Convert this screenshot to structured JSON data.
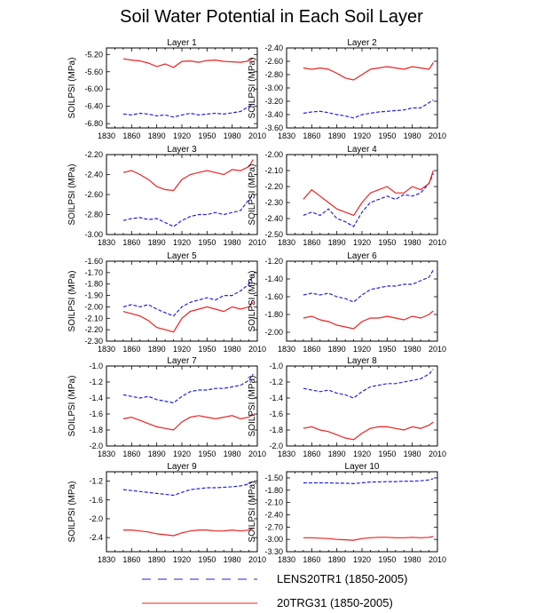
{
  "title": "Soil Water Potential in Each Soil Layer",
  "legend": [
    {
      "label": "LENS20TR1 (1850-2005)",
      "color": "#2222dd",
      "dash": true
    },
    {
      "label": "20TRG31 (1850-2005)",
      "color": "#ee2222",
      "dash": false
    }
  ],
  "chart_data": [
    {
      "type": "line",
      "title": "Layer 1",
      "ylabel": "SOILPSI  (MPa)",
      "xlim": [
        1830,
        2010
      ],
      "xticks": [
        1830,
        1860,
        1890,
        1920,
        1950,
        1980,
        2010
      ],
      "ylim": [
        -6.9,
        -5.05
      ],
      "yticks": [
        "-5.20",
        "-5.60",
        "-6.00",
        "-6.40",
        "-6.80"
      ],
      "series": [
        {
          "name": "LENS20TR1 (1850-2005)",
          "x": [
            1850,
            1860,
            1870,
            1880,
            1890,
            1900,
            1910,
            1920,
            1930,
            1940,
            1950,
            1960,
            1970,
            1980,
            1990,
            2000,
            2005
          ],
          "y": [
            -6.58,
            -6.6,
            -6.56,
            -6.58,
            -6.62,
            -6.6,
            -6.65,
            -6.6,
            -6.56,
            -6.6,
            -6.58,
            -6.56,
            -6.58,
            -6.55,
            -6.52,
            -6.4,
            -6.35
          ]
        },
        {
          "name": "20TRG31 (1850-2005)",
          "x": [
            1850,
            1860,
            1870,
            1880,
            1890,
            1900,
            1910,
            1920,
            1930,
            1940,
            1950,
            1960,
            1970,
            1980,
            1990,
            2000,
            2005
          ],
          "y": [
            -5.3,
            -5.33,
            -5.35,
            -5.4,
            -5.48,
            -5.42,
            -5.5,
            -5.36,
            -5.35,
            -5.38,
            -5.34,
            -5.33,
            -5.36,
            -5.37,
            -5.38,
            -5.35,
            -5.28
          ]
        }
      ]
    },
    {
      "type": "line",
      "title": "Layer 2",
      "ylabel": "SOILPSI  (MPa)",
      "xlim": [
        1830,
        2010
      ],
      "xticks": [
        1830,
        1860,
        1890,
        1920,
        1950,
        1980,
        2010
      ],
      "ylim": [
        -3.6,
        -2.4
      ],
      "yticks": [
        "-2.40",
        "-2.60",
        "-2.80",
        "-3.00",
        "-3.20",
        "-3.40",
        "-3.60"
      ],
      "series": [
        {
          "name": "LENS20TR1 (1850-2005)",
          "x": [
            1850,
            1860,
            1870,
            1880,
            1890,
            1900,
            1910,
            1920,
            1930,
            1940,
            1950,
            1960,
            1970,
            1980,
            1990,
            2000,
            2005
          ],
          "y": [
            -3.38,
            -3.36,
            -3.35,
            -3.37,
            -3.4,
            -3.42,
            -3.45,
            -3.4,
            -3.38,
            -3.36,
            -3.35,
            -3.34,
            -3.33,
            -3.3,
            -3.3,
            -3.22,
            -3.18
          ]
        },
        {
          "name": "20TRG31 (1850-2005)",
          "x": [
            1850,
            1860,
            1870,
            1880,
            1890,
            1900,
            1910,
            1920,
            1930,
            1940,
            1950,
            1960,
            1970,
            1980,
            1990,
            2000,
            2005
          ],
          "y": [
            -2.7,
            -2.72,
            -2.7,
            -2.72,
            -2.78,
            -2.85,
            -2.88,
            -2.8,
            -2.72,
            -2.7,
            -2.68,
            -2.7,
            -2.72,
            -2.68,
            -2.7,
            -2.72,
            -2.62
          ]
        }
      ]
    },
    {
      "type": "line",
      "title": "Layer 3",
      "ylabel": "SOILPSI  (MPa)",
      "xlim": [
        1830,
        2010
      ],
      "xticks": [
        1830,
        1860,
        1890,
        1920,
        1950,
        1980,
        2010
      ],
      "ylim": [
        -3.0,
        -2.2
      ],
      "yticks": [
        "-2.20",
        "-2.40",
        "-2.60",
        "-2.80",
        "-3.00"
      ],
      "series": [
        {
          "name": "LENS20TR1 (1850-2005)",
          "x": [
            1850,
            1860,
            1870,
            1880,
            1890,
            1900,
            1910,
            1920,
            1930,
            1940,
            1950,
            1960,
            1970,
            1980,
            1990,
            2000,
            2005
          ],
          "y": [
            -2.86,
            -2.84,
            -2.83,
            -2.85,
            -2.84,
            -2.88,
            -2.92,
            -2.86,
            -2.82,
            -2.8,
            -2.8,
            -2.78,
            -2.8,
            -2.78,
            -2.76,
            -2.65,
            -2.6
          ]
        },
        {
          "name": "20TRG31 (1850-2005)",
          "x": [
            1850,
            1860,
            1870,
            1880,
            1890,
            1900,
            1910,
            1920,
            1930,
            1940,
            1950,
            1960,
            1970,
            1980,
            1990,
            2000,
            2005
          ],
          "y": [
            -2.38,
            -2.36,
            -2.4,
            -2.45,
            -2.52,
            -2.55,
            -2.56,
            -2.45,
            -2.4,
            -2.38,
            -2.36,
            -2.38,
            -2.4,
            -2.35,
            -2.36,
            -2.32,
            -2.25
          ]
        }
      ]
    },
    {
      "type": "line",
      "title": "Layer 4",
      "ylabel": "SOILPSI  (MPa)",
      "xlim": [
        1830,
        2010
      ],
      "xticks": [
        1830,
        1860,
        1890,
        1920,
        1950,
        1980,
        2010
      ],
      "ylim": [
        -2.5,
        -2.0
      ],
      "yticks": [
        "-2.00",
        "-2.10",
        "-2.20",
        "-2.30",
        "-2.40",
        "-2.50"
      ],
      "series": [
        {
          "name": "LENS20TR1 (1850-2005)",
          "x": [
            1850,
            1860,
            1870,
            1880,
            1890,
            1900,
            1910,
            1920,
            1930,
            1940,
            1950,
            1960,
            1970,
            1980,
            1990,
            2000,
            2005
          ],
          "y": [
            -2.38,
            -2.36,
            -2.38,
            -2.34,
            -2.4,
            -2.42,
            -2.45,
            -2.36,
            -2.3,
            -2.28,
            -2.26,
            -2.28,
            -2.25,
            -2.26,
            -2.24,
            -2.18,
            -2.12
          ]
        },
        {
          "name": "20TRG31 (1850-2005)",
          "x": [
            1850,
            1860,
            1870,
            1880,
            1890,
            1900,
            1910,
            1920,
            1930,
            1940,
            1950,
            1960,
            1970,
            1980,
            1990,
            2000,
            2005
          ],
          "y": [
            -2.28,
            -2.22,
            -2.26,
            -2.3,
            -2.34,
            -2.36,
            -2.38,
            -2.3,
            -2.24,
            -2.22,
            -2.2,
            -2.24,
            -2.24,
            -2.2,
            -2.22,
            -2.18,
            -2.1
          ]
        }
      ]
    },
    {
      "type": "line",
      "title": "Layer 5",
      "ylabel": "SOILPSI  (MPa)",
      "xlim": [
        1830,
        2010
      ],
      "xticks": [
        1830,
        1860,
        1890,
        1920,
        1950,
        1980,
        2010
      ],
      "ylim": [
        -2.3,
        -1.6
      ],
      "yticks": [
        "-1.60",
        "-1.70",
        "-1.80",
        "-1.90",
        "-2.00",
        "-2.10",
        "-2.20",
        "-2.30"
      ],
      "series": [
        {
          "name": "LENS20TR1 (1850-2005)",
          "x": [
            1850,
            1860,
            1870,
            1880,
            1890,
            1900,
            1910,
            1920,
            1930,
            1940,
            1950,
            1960,
            1970,
            1980,
            1990,
            2000,
            2005
          ],
          "y": [
            -2.0,
            -1.98,
            -2.0,
            -1.98,
            -2.02,
            -2.05,
            -2.08,
            -2.0,
            -1.96,
            -1.94,
            -1.92,
            -1.94,
            -1.9,
            -1.9,
            -1.86,
            -1.8,
            -1.72
          ]
        },
        {
          "name": "20TRG31 (1850-2005)",
          "x": [
            1850,
            1860,
            1870,
            1880,
            1890,
            1900,
            1910,
            1920,
            1930,
            1940,
            1950,
            1960,
            1970,
            1980,
            1990,
            2000,
            2005
          ],
          "y": [
            -2.04,
            -2.06,
            -2.08,
            -2.12,
            -2.18,
            -2.2,
            -2.22,
            -2.1,
            -2.04,
            -2.02,
            -2.0,
            -2.02,
            -2.04,
            -2.0,
            -2.02,
            -2.0,
            -1.96
          ]
        }
      ]
    },
    {
      "type": "line",
      "title": "Layer 6",
      "ylabel": "SOILPSI  (MPa)",
      "xlim": [
        1830,
        2010
      ],
      "xticks": [
        1830,
        1860,
        1890,
        1920,
        1950,
        1980,
        2010
      ],
      "ylim": [
        -2.1,
        -1.2
      ],
      "yticks": [
        "-1.20",
        "-1.40",
        "-1.60",
        "-1.80",
        "-2.00"
      ],
      "series": [
        {
          "name": "LENS20TR1 (1850-2005)",
          "x": [
            1850,
            1860,
            1870,
            1880,
            1890,
            1900,
            1910,
            1920,
            1930,
            1940,
            1950,
            1960,
            1970,
            1980,
            1990,
            2000,
            2005
          ],
          "y": [
            -1.58,
            -1.56,
            -1.58,
            -1.56,
            -1.6,
            -1.62,
            -1.66,
            -1.58,
            -1.52,
            -1.5,
            -1.48,
            -1.48,
            -1.46,
            -1.46,
            -1.42,
            -1.38,
            -1.3
          ]
        },
        {
          "name": "20TRG31 (1850-2005)",
          "x": [
            1850,
            1860,
            1870,
            1880,
            1890,
            1900,
            1910,
            1920,
            1930,
            1940,
            1950,
            1960,
            1970,
            1980,
            1990,
            2000,
            2005
          ],
          "y": [
            -1.84,
            -1.82,
            -1.86,
            -1.88,
            -1.92,
            -1.94,
            -1.96,
            -1.88,
            -1.84,
            -1.84,
            -1.82,
            -1.84,
            -1.86,
            -1.82,
            -1.84,
            -1.8,
            -1.76
          ]
        }
      ]
    },
    {
      "type": "line",
      "title": "Layer 7",
      "ylabel": "SOILPSI  (MPa)",
      "xlim": [
        1830,
        2010
      ],
      "xticks": [
        1830,
        1860,
        1890,
        1920,
        1950,
        1980,
        2010
      ],
      "ylim": [
        -2.0,
        -1.0
      ],
      "yticks": [
        "-1.0",
        "-1.2",
        "-1.4",
        "-1.6",
        "-1.8",
        "-2.0"
      ],
      "series": [
        {
          "name": "LENS20TR1 (1850-2005)",
          "x": [
            1850,
            1860,
            1870,
            1880,
            1890,
            1900,
            1910,
            1920,
            1930,
            1940,
            1950,
            1960,
            1970,
            1980,
            1990,
            2000,
            2005
          ],
          "y": [
            -1.36,
            -1.38,
            -1.4,
            -1.38,
            -1.42,
            -1.44,
            -1.46,
            -1.38,
            -1.32,
            -1.3,
            -1.3,
            -1.28,
            -1.28,
            -1.26,
            -1.24,
            -1.18,
            -1.1
          ]
        },
        {
          "name": "20TRG31 (1850-2005)",
          "x": [
            1850,
            1860,
            1870,
            1880,
            1890,
            1900,
            1910,
            1920,
            1930,
            1940,
            1950,
            1960,
            1970,
            1980,
            1990,
            2000,
            2005
          ],
          "y": [
            -1.66,
            -1.64,
            -1.68,
            -1.72,
            -1.76,
            -1.78,
            -1.8,
            -1.7,
            -1.64,
            -1.62,
            -1.64,
            -1.66,
            -1.64,
            -1.62,
            -1.66,
            -1.64,
            -1.6
          ]
        }
      ]
    },
    {
      "type": "line",
      "title": "Layer 8",
      "ylabel": "SOILPSI  (MPa)",
      "xlim": [
        1830,
        2010
      ],
      "xticks": [
        1830,
        1860,
        1890,
        1920,
        1950,
        1980,
        2010
      ],
      "ylim": [
        -2.0,
        -1.0
      ],
      "yticks": [
        "-1.0",
        "-1.2",
        "-1.4",
        "-1.6",
        "-1.8",
        "-2.0"
      ],
      "series": [
        {
          "name": "LENS20TR1 (1850-2005)",
          "x": [
            1850,
            1860,
            1870,
            1880,
            1890,
            1900,
            1910,
            1920,
            1930,
            1940,
            1950,
            1960,
            1970,
            1980,
            1990,
            2000,
            2005
          ],
          "y": [
            -1.28,
            -1.3,
            -1.32,
            -1.3,
            -1.34,
            -1.36,
            -1.4,
            -1.32,
            -1.26,
            -1.24,
            -1.22,
            -1.22,
            -1.2,
            -1.18,
            -1.16,
            -1.1,
            -1.04
          ]
        },
        {
          "name": "20TRG31 (1850-2005)",
          "x": [
            1850,
            1860,
            1870,
            1880,
            1890,
            1900,
            1910,
            1920,
            1930,
            1940,
            1950,
            1960,
            1970,
            1980,
            1990,
            2000,
            2005
          ],
          "y": [
            -1.78,
            -1.76,
            -1.8,
            -1.82,
            -1.86,
            -1.9,
            -1.92,
            -1.84,
            -1.78,
            -1.76,
            -1.76,
            -1.78,
            -1.8,
            -1.76,
            -1.78,
            -1.74,
            -1.7
          ]
        }
      ]
    },
    {
      "type": "line",
      "title": "Layer 9",
      "ylabel": "SOILPSI  (MPa)",
      "xlim": [
        1830,
        2010
      ],
      "xticks": [
        1830,
        1860,
        1890,
        1920,
        1950,
        1980,
        2010
      ],
      "ylim": [
        -2.7,
        -1.0
      ],
      "yticks": [
        "-1.2",
        "-1.6",
        "-2.0",
        "-2.4"
      ],
      "series": [
        {
          "name": "LENS20TR1 (1850-2005)",
          "x": [
            1850,
            1860,
            1870,
            1880,
            1890,
            1900,
            1910,
            1920,
            1930,
            1940,
            1950,
            1960,
            1970,
            1980,
            1990,
            2000,
            2005
          ],
          "y": [
            -1.38,
            -1.4,
            -1.42,
            -1.44,
            -1.46,
            -1.48,
            -1.5,
            -1.44,
            -1.38,
            -1.36,
            -1.34,
            -1.34,
            -1.33,
            -1.32,
            -1.3,
            -1.26,
            -1.2
          ]
        },
        {
          "name": "20TRG31 (1850-2005)",
          "x": [
            1850,
            1860,
            1870,
            1880,
            1890,
            1900,
            1910,
            1920,
            1930,
            1940,
            1950,
            1960,
            1970,
            1980,
            1990,
            2000,
            2005
          ],
          "y": [
            -2.24,
            -2.24,
            -2.26,
            -2.28,
            -2.32,
            -2.34,
            -2.36,
            -2.3,
            -2.26,
            -2.24,
            -2.24,
            -2.26,
            -2.26,
            -2.24,
            -2.26,
            -2.24,
            -2.2
          ]
        }
      ]
    },
    {
      "type": "line",
      "title": "Layer 10",
      "ylabel": "SOILPSI  (MPa)",
      "xlim": [
        1830,
        2010
      ],
      "xticks": [
        1830,
        1860,
        1890,
        1920,
        1950,
        1980,
        2010
      ],
      "ylim": [
        -3.3,
        -1.35
      ],
      "yticks": [
        "-1.50",
        "-1.80",
        "-2.10",
        "-2.40",
        "-2.70",
        "-3.00",
        "-3.30"
      ],
      "series": [
        {
          "name": "LENS20TR1 (1850-2005)",
          "x": [
            1850,
            1860,
            1870,
            1880,
            1890,
            1900,
            1910,
            1920,
            1930,
            1940,
            1950,
            1960,
            1970,
            1980,
            1990,
            2000,
            2005
          ],
          "y": [
            -1.62,
            -1.62,
            -1.62,
            -1.62,
            -1.63,
            -1.63,
            -1.64,
            -1.62,
            -1.6,
            -1.6,
            -1.59,
            -1.59,
            -1.58,
            -1.58,
            -1.57,
            -1.55,
            -1.52
          ]
        },
        {
          "name": "20TRG31 (1850-2005)",
          "x": [
            1850,
            1860,
            1870,
            1880,
            1890,
            1900,
            1910,
            1920,
            1930,
            1940,
            1950,
            1960,
            1970,
            1980,
            1990,
            2000,
            2005
          ],
          "y": [
            -2.96,
            -2.96,
            -2.97,
            -2.98,
            -3.0,
            -3.01,
            -3.02,
            -2.98,
            -2.96,
            -2.95,
            -2.95,
            -2.96,
            -2.96,
            -2.95,
            -2.96,
            -2.95,
            -2.93
          ]
        }
      ]
    }
  ]
}
